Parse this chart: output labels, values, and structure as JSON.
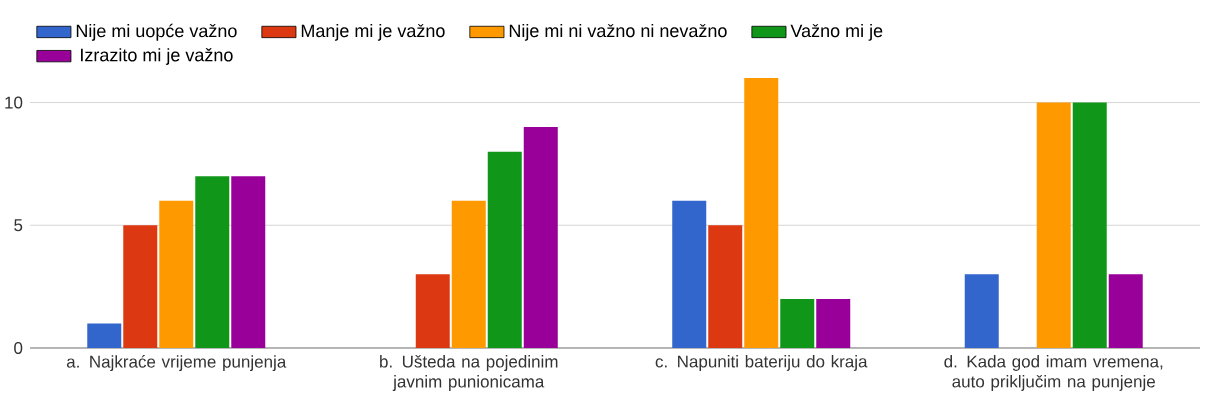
{
  "chart_data": {
    "type": "bar",
    "categories": [
      "a. Najkraće vrijeme punjenja",
      "b. Ušteda na pojedinim javnim punionicama",
      "c. Napuniti bateriju do kraja",
      "d. Kada god imam vremena, auto priključim na punjenje"
    ],
    "series": [
      {
        "name": "Nije mi uopće važno",
        "color": "#3366cc",
        "values": [
          1,
          0,
          6,
          3
        ]
      },
      {
        "name": "Manje mi je važno",
        "color": "#dc3912",
        "values": [
          5,
          3,
          5,
          0
        ]
      },
      {
        "name": "Nije mi ni važno ni nevažno",
        "color": "#ff9900",
        "values": [
          6,
          6,
          11,
          10
        ]
      },
      {
        "name": "Važno mi je",
        "color": "#109618",
        "values": [
          7,
          8,
          2,
          10
        ]
      },
      {
        "name": "Izrazito mi je važno",
        "color": "#990099",
        "values": [
          7,
          9,
          2,
          3
        ]
      }
    ],
    "ylim": [
      0,
      11
    ],
    "yticks": [
      0,
      5,
      10
    ],
    "grid": "y",
    "legend": "top"
  }
}
